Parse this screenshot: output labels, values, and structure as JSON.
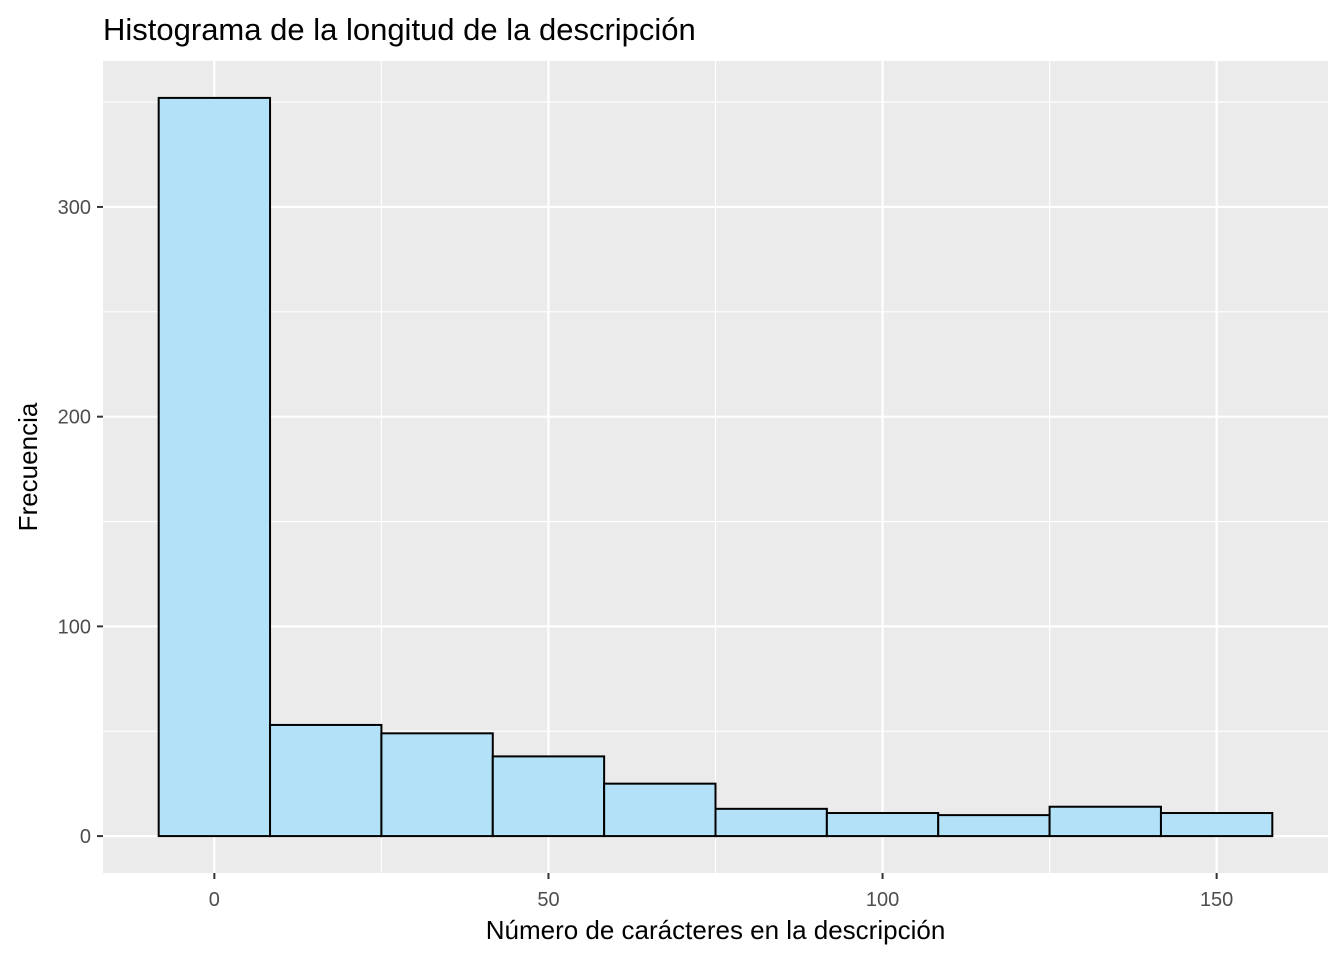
{
  "chart_data": {
    "type": "bar",
    "title": "Histograma de la longitud de la descripción",
    "xlabel": "Número de carácteres en la descripción",
    "ylabel": "Frecuencia",
    "bin_width": 16.667,
    "bins": [
      {
        "start": -8.333,
        "end": 8.333,
        "count": 352
      },
      {
        "start": 8.333,
        "end": 25.0,
        "count": 53
      },
      {
        "start": 25.0,
        "end": 41.667,
        "count": 49
      },
      {
        "start": 41.667,
        "end": 58.333,
        "count": 38
      },
      {
        "start": 58.333,
        "end": 75.0,
        "count": 25
      },
      {
        "start": 75.0,
        "end": 91.667,
        "count": 13
      },
      {
        "start": 91.667,
        "end": 108.333,
        "count": 11
      },
      {
        "start": 108.333,
        "end": 125.0,
        "count": 10
      },
      {
        "start": 125.0,
        "end": 141.667,
        "count": 14
      },
      {
        "start": 141.667,
        "end": 158.333,
        "count": 11
      }
    ],
    "xlim": [
      -16.667,
      166.667
    ],
    "ylim": [
      -17.6,
      369.6
    ],
    "x_ticks": [
      0,
      50,
      100,
      150
    ],
    "x_tick_labels": [
      "0",
      "50",
      "100",
      "150"
    ],
    "y_ticks": [
      0,
      100,
      200,
      300
    ],
    "y_tick_labels": [
      "0",
      "100",
      "200",
      "300"
    ],
    "x_minor_ticks": [
      25,
      75,
      125
    ],
    "y_minor_ticks": [
      50,
      150,
      250,
      350
    ],
    "grid": true,
    "legend": "none",
    "colors": {
      "panel": "#ebebeb",
      "grid": "#ffffff",
      "bar_fill": "#b3e1f8",
      "bar_outline": "#000000",
      "tick": "#333333"
    }
  }
}
